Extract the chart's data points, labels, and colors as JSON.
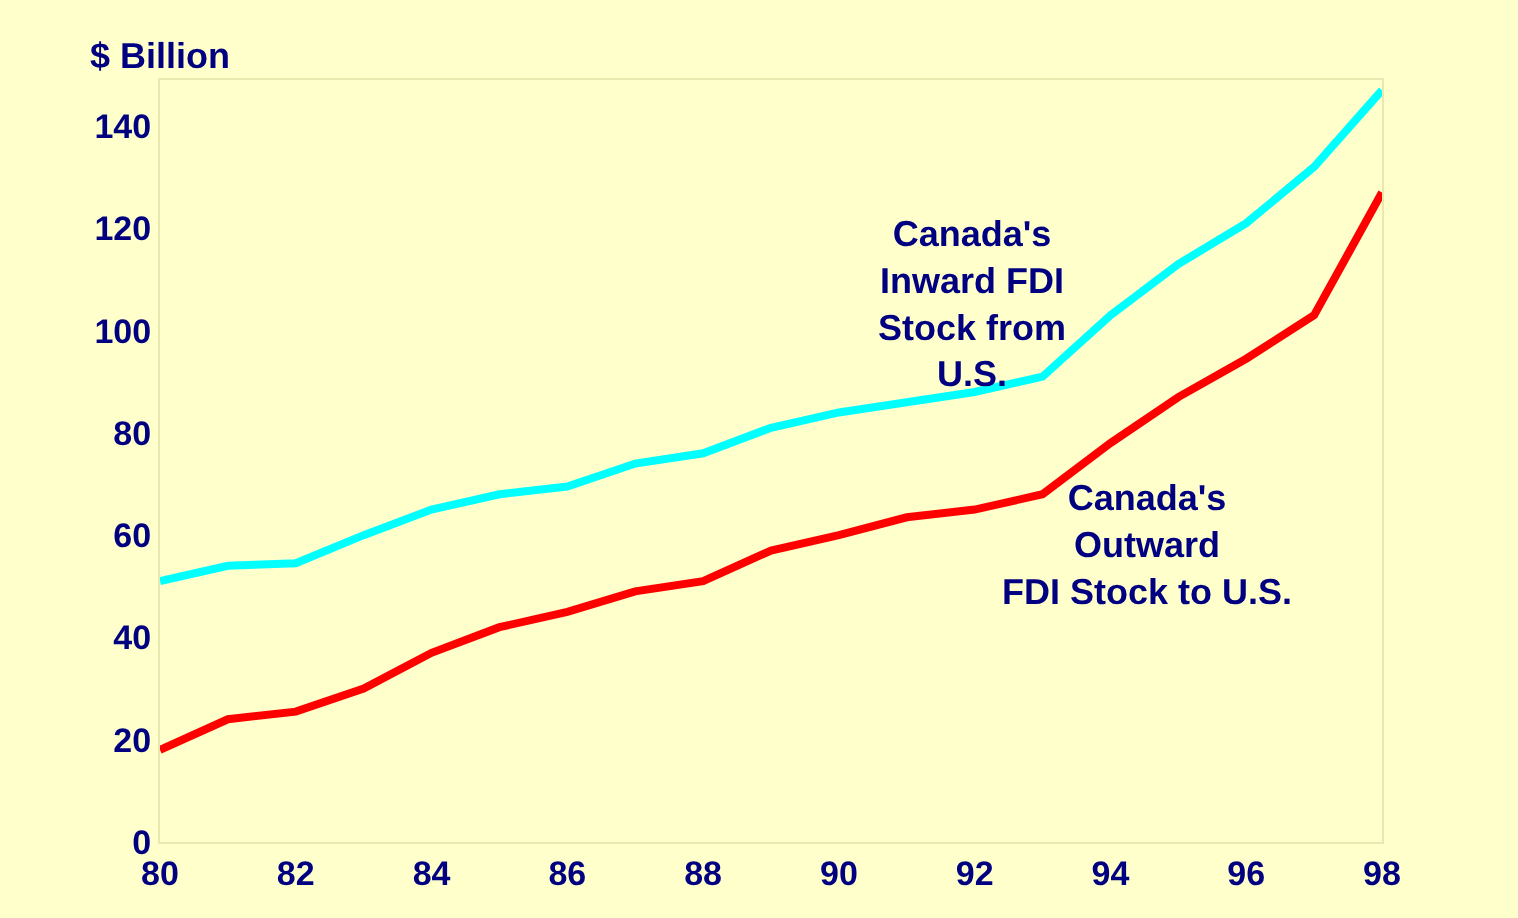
{
  "chart_data": {
    "type": "line",
    "ylabel": "$ Billion",
    "x": [
      80,
      81,
      82,
      83,
      84,
      85,
      86,
      87,
      88,
      89,
      90,
      91,
      92,
      93,
      94,
      95,
      96,
      97,
      98
    ],
    "series": [
      {
        "name": "Canada's\nInward FDI\nStock from\nU.S.",
        "color": "#00ffff",
        "values": [
          51,
          54,
          54.5,
          60,
          65,
          68,
          69.5,
          74,
          76,
          81,
          84,
          86,
          88,
          91,
          103,
          113,
          121,
          132,
          147
        ]
      },
      {
        "name": "Canada's\nOutward\nFDI Stock to U.S.",
        "color": "#ff0000",
        "values": [
          18,
          24,
          25.5,
          30,
          37,
          42,
          45,
          49,
          51,
          57,
          60,
          63.5,
          65,
          68,
          78,
          87,
          94.5,
          103,
          127
        ]
      }
    ],
    "xlim": [
      80,
      98
    ],
    "xticks": [
      80,
      82,
      84,
      86,
      88,
      90,
      92,
      94,
      96,
      98
    ],
    "ylim": [
      0,
      149
    ],
    "yticks": [
      0,
      20,
      40,
      60,
      80,
      100,
      120,
      140
    ],
    "grid": false,
    "legend": false,
    "marker": "none",
    "line_style": "solid"
  }
}
